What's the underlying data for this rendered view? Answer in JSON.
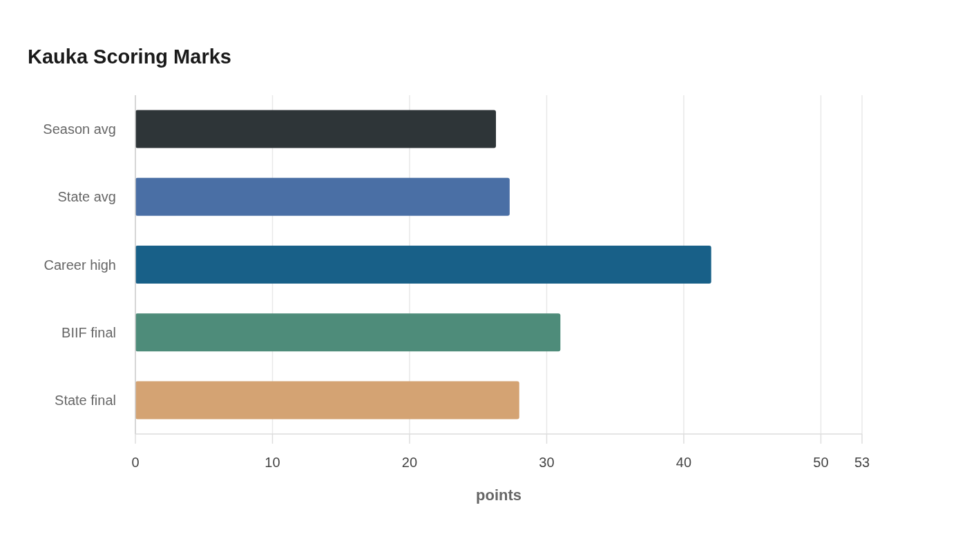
{
  "chart_data": {
    "type": "bar",
    "orientation": "horizontal",
    "title": "Kauka Scoring Marks",
    "xlabel": "points",
    "categories": [
      "Season avg",
      "State avg",
      "Career high",
      "BIIF final",
      "State final"
    ],
    "values": [
      26.3,
      27.3,
      42,
      31,
      28
    ],
    "colors": [
      "#2e3538",
      "#4a6fa5",
      "#186088",
      "#4e8c7a",
      "#d4a373"
    ],
    "xlim": [
      0,
      53
    ],
    "xticks": [
      0,
      10,
      20,
      30,
      40,
      50,
      53
    ],
    "grid": "x"
  }
}
